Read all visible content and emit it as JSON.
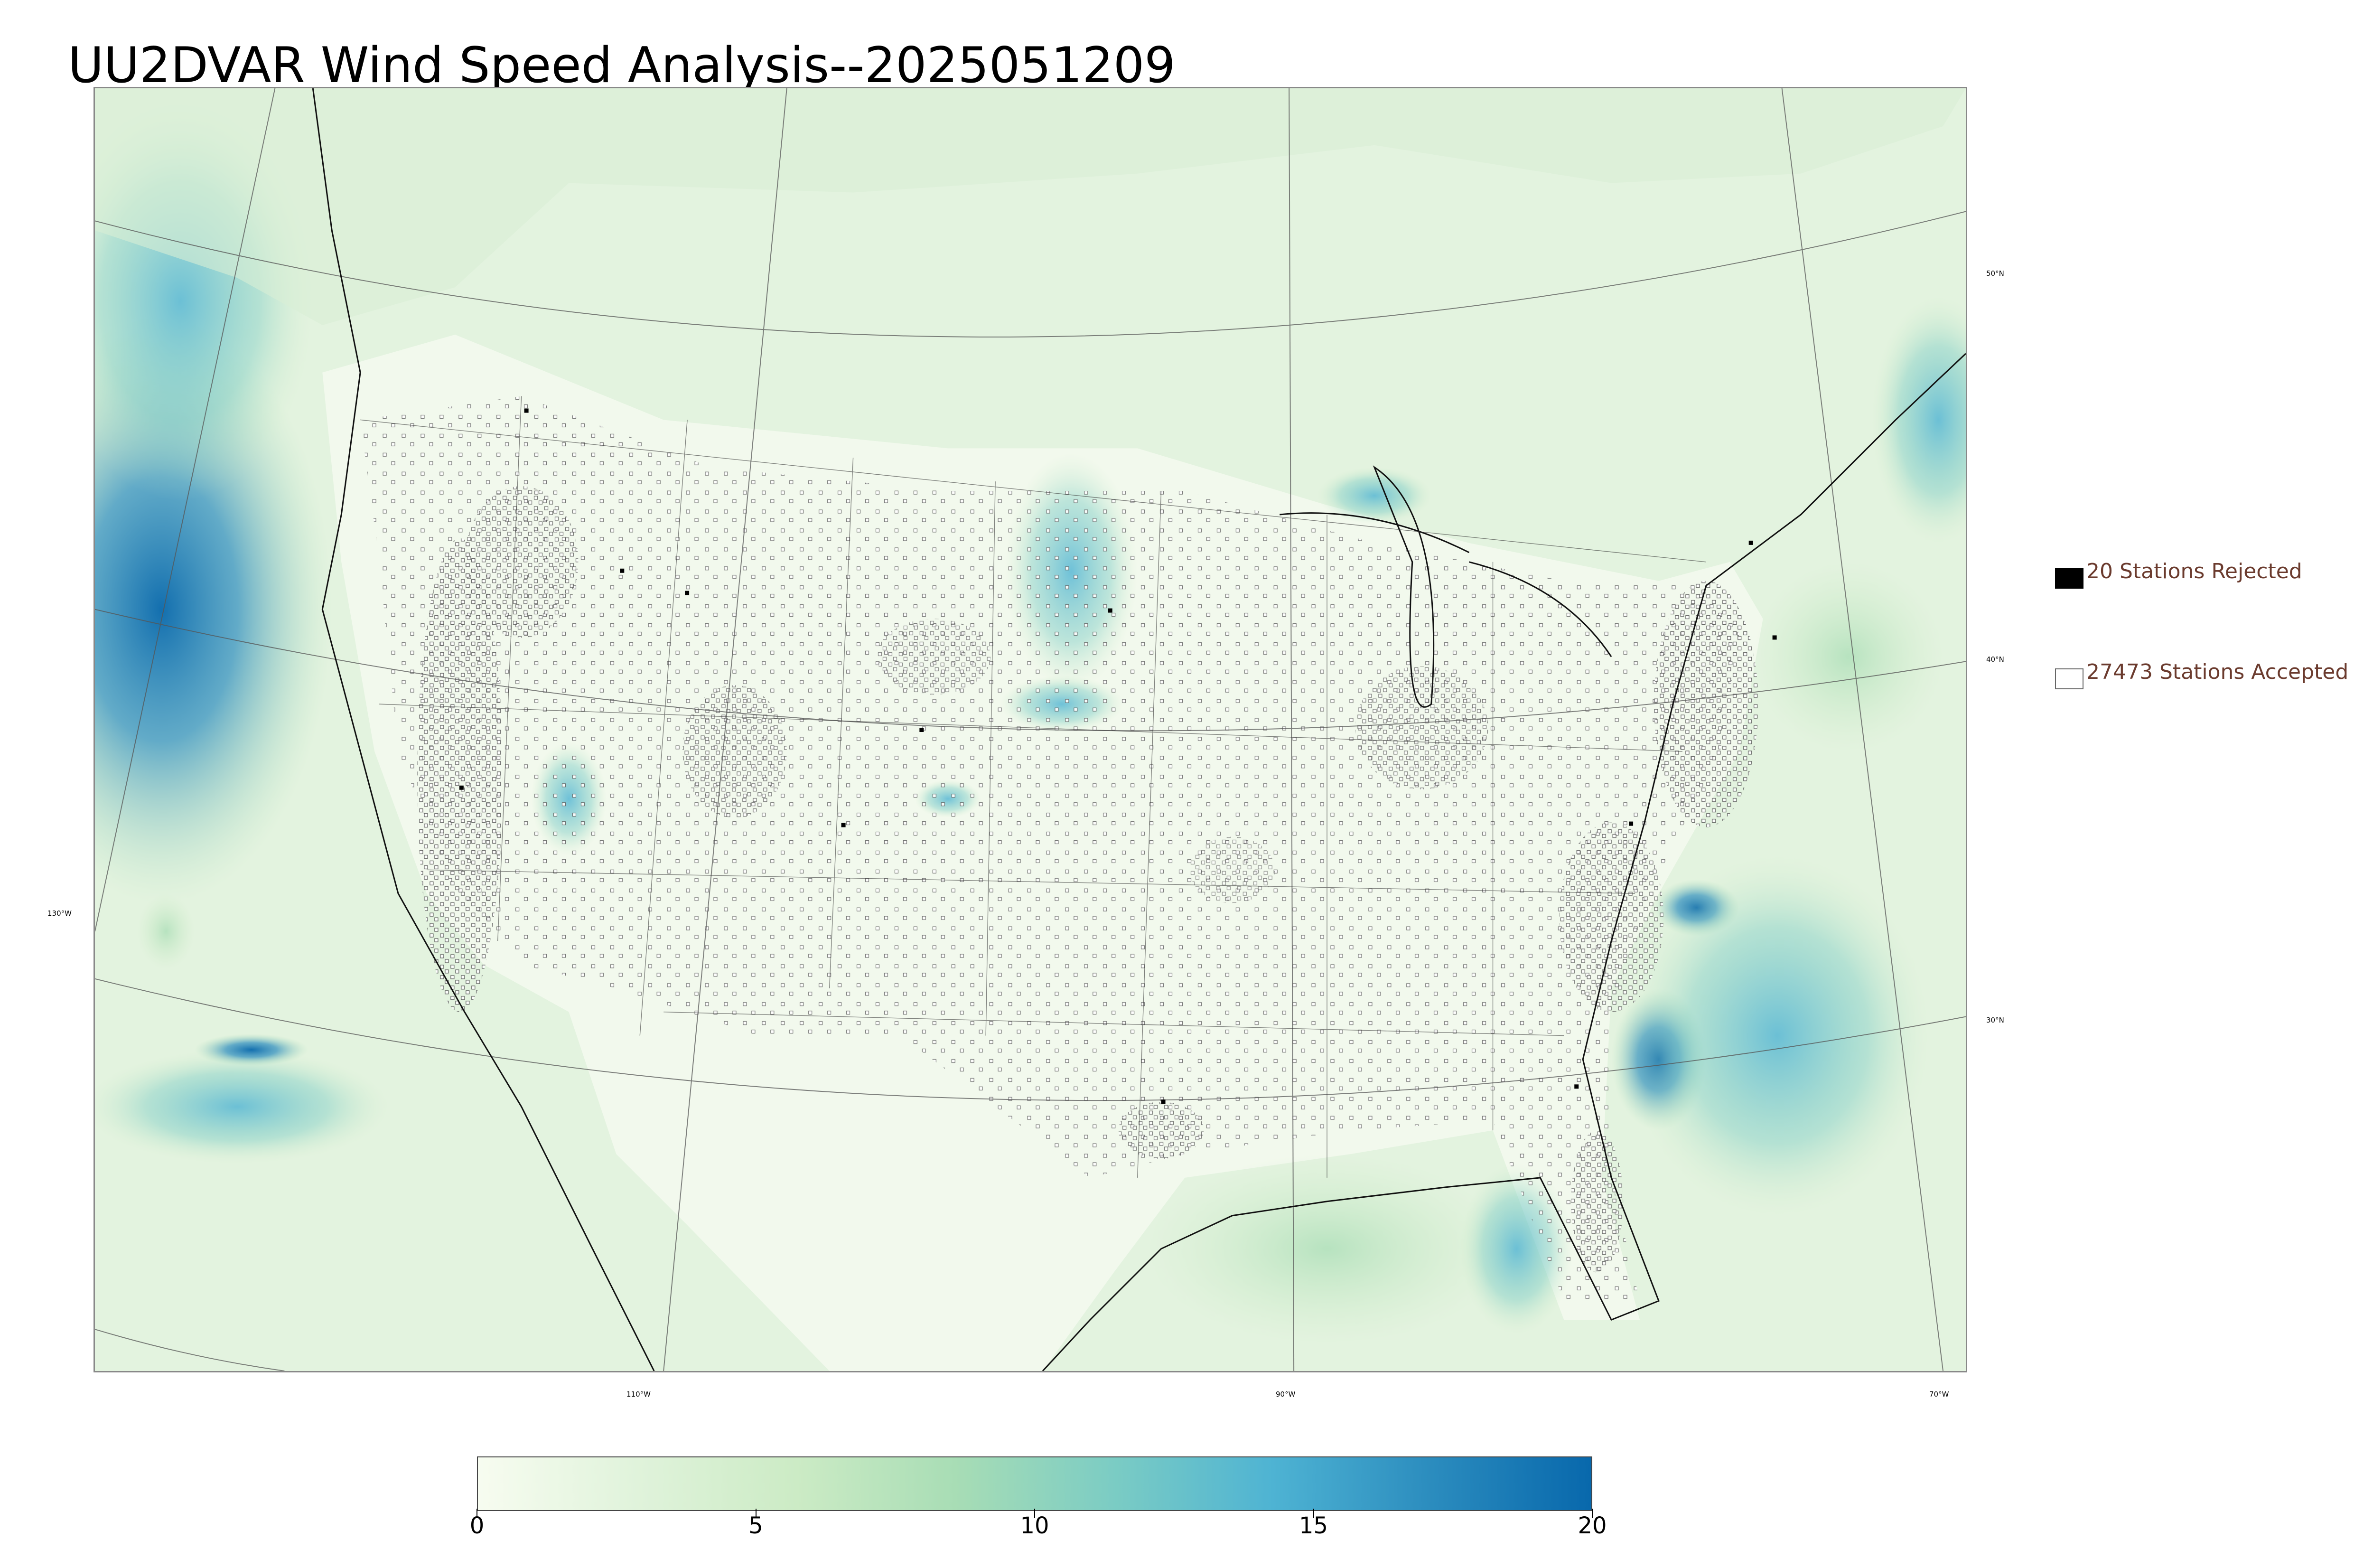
{
  "title": "UU2DVAR Wind Speed Analysis--2025051209",
  "map": {
    "region": "CONUS",
    "field": "wind speed",
    "graticule": {
      "lat_labels": [
        "50°N",
        "40°N",
        "30°N"
      ],
      "lon_labels": [
        "130°W",
        "110°W",
        "90°W",
        "70°W"
      ]
    },
    "station_symbols": {
      "accepted": "open-square",
      "rejected": "filled-square"
    }
  },
  "legend": {
    "rejected": {
      "label": "20 Stations Rejected",
      "count": 20,
      "color": "#000000"
    },
    "accepted": {
      "label": "27473 Stations Accepted",
      "count": 27473,
      "color": "#ffffff"
    }
  },
  "colorbar": {
    "min": 0,
    "max": 20,
    "tick_labels": [
      "0",
      "5",
      "10",
      "15",
      "20"
    ],
    "ticks": [
      0,
      5,
      10,
      15,
      20
    ],
    "colormap": [
      "#f7fcf0",
      "#e0f3db",
      "#ccebc5",
      "#a8ddb5",
      "#7bccc4",
      "#4eb3d3",
      "#2b8cbe",
      "#0868ac"
    ]
  }
}
